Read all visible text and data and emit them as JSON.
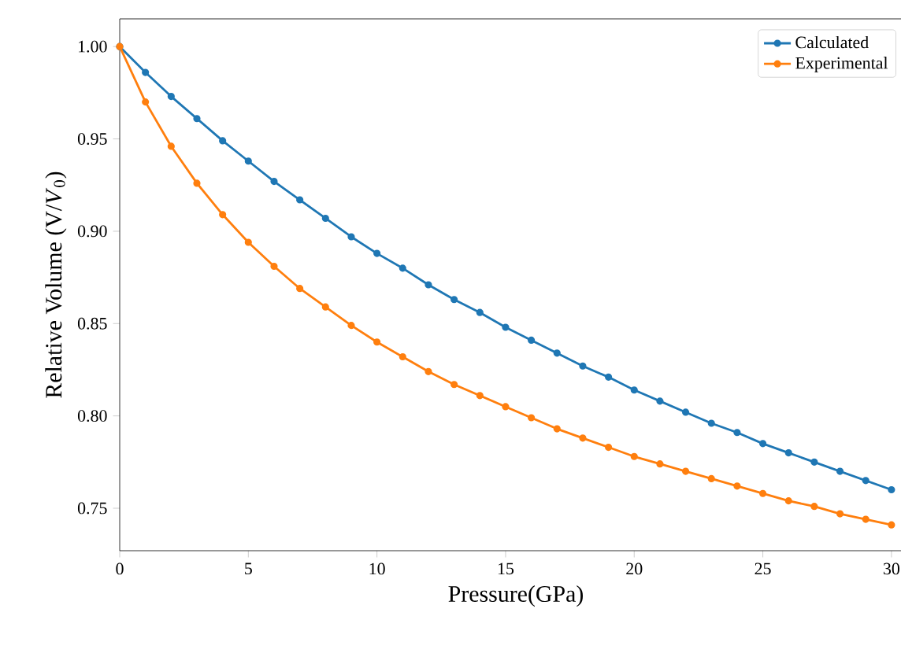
{
  "chart_data": {
    "type": "line",
    "xlabel": "Pressure(GPa)",
    "ylabel": "Relative Volume (V/*V*$_{0}$)",
    "x": [
      0,
      1,
      2,
      3,
      4,
      5,
      6,
      7,
      8,
      9,
      10,
      11,
      12,
      13,
      14,
      15,
      16,
      17,
      18,
      19,
      20,
      21,
      22,
      23,
      24,
      25,
      26,
      27,
      28,
      29,
      30
    ],
    "series": [
      {
        "name": "Calculated",
        "color": "#1f77b4",
        "values": [
          1.0,
          0.986,
          0.973,
          0.961,
          0.949,
          0.938,
          0.927,
          0.917,
          0.907,
          0.897,
          0.888,
          0.88,
          0.871,
          0.863,
          0.856,
          0.848,
          0.841,
          0.834,
          0.827,
          0.821,
          0.814,
          0.808,
          0.802,
          0.796,
          0.791,
          0.785,
          0.78,
          0.775,
          0.77,
          0.765,
          0.76
        ]
      },
      {
        "name": "Experimental",
        "color": "#ff7f0e",
        "values": [
          1.0,
          0.97,
          0.946,
          0.926,
          0.909,
          0.894,
          0.881,
          0.869,
          0.859,
          0.849,
          0.84,
          0.832,
          0.824,
          0.817,
          0.811,
          0.805,
          0.799,
          0.793,
          0.788,
          0.783,
          0.778,
          0.774,
          0.77,
          0.766,
          0.762,
          0.758,
          0.754,
          0.751,
          0.747,
          0.744,
          0.741
        ]
      }
    ],
    "xlim": [
      0,
      30.8
    ],
    "ylim": [
      0.727,
      1.015
    ],
    "xticks": [
      0,
      5,
      10,
      15,
      20,
      25,
      30
    ],
    "yticks": [
      {
        "value": 0.75,
        "label": "0.75"
      },
      {
        "value": 0.8,
        "label": "0.80"
      },
      {
        "value": 0.85,
        "label": "0.85"
      },
      {
        "value": 0.9,
        "label": "0.90"
      },
      {
        "value": 0.95,
        "label": "0.95"
      },
      {
        "value": 1.0,
        "label": "1.00"
      }
    ],
    "legend": "top right",
    "marker": "circle",
    "line_style": "solid",
    "grid": false
  }
}
